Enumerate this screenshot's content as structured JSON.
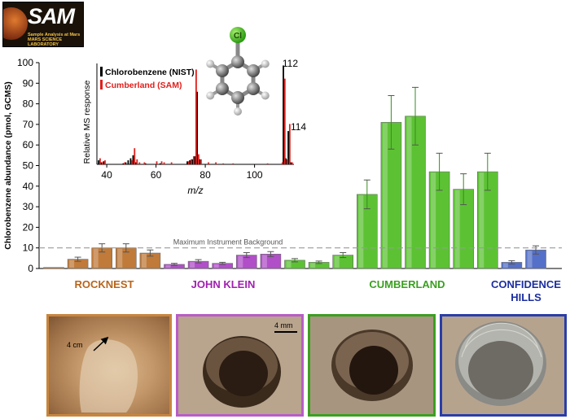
{
  "logo": {
    "title": "SAM",
    "subtitle_line1": "Sample Analysis at Mars",
    "subtitle_line2": "MARS SCIENCE LABORATORY"
  },
  "chart_data": [
    {
      "type": "bar",
      "ylabel": "Chlorobenzene abundance (pmol, GCMS)",
      "ylim": [
        0,
        100
      ],
      "yticks": [
        0,
        10,
        20,
        30,
        40,
        50,
        60,
        70,
        80,
        90,
        100
      ],
      "grid": false,
      "reference_line": {
        "value": 10,
        "label": "Maximum Instrument Background",
        "color": "#999999"
      },
      "groups": [
        {
          "name": "ROCKNEST",
          "color": "#c07a3a",
          "label_color": "#b8651c",
          "values": [
            0.5,
            4.5,
            10,
            10,
            7.5
          ],
          "errors": [
            0,
            1,
            2,
            2,
            1.5
          ]
        },
        {
          "name": "JOHN KLEIN",
          "color": "#b04fc8",
          "label_color": "#a020b0",
          "values": [
            2,
            3.5,
            2.5,
            6.5,
            7
          ],
          "errors": [
            0.5,
            0.8,
            0.5,
            1.2,
            1.2
          ]
        },
        {
          "name": "",
          "color": "#5cc234",
          "label_color": "",
          "values": [
            4,
            3,
            6.5
          ],
          "errors": [
            0.8,
            0.6,
            1.2
          ]
        },
        {
          "name": "CUMBERLAND",
          "color": "#5cc234",
          "label_color": "#3aa020",
          "values": [
            36,
            71,
            74,
            47,
            38.5,
            47
          ],
          "errors": [
            7,
            13,
            14,
            9,
            7.5,
            9
          ]
        },
        {
          "name": "CONFIDENCE HILLS",
          "color": "#5570c8",
          "label_color": "#1c2ea0",
          "values": [
            3,
            9
          ],
          "errors": [
            0.8,
            2
          ]
        }
      ]
    },
    {
      "type": "bar",
      "role": "inset mass spectrum",
      "xlabel": "m/z",
      "ylabel": "Relative MS response",
      "xlim": [
        36,
        116
      ],
      "xticks": [
        40,
        60,
        80,
        100
      ],
      "ylim": [
        0,
        100
      ],
      "legend": "top-left",
      "series": [
        {
          "name": "Chlorobenzene (NIST)",
          "color": "#000000",
          "x": [
            37,
            38,
            39,
            47,
            48,
            49,
            50,
            51,
            52,
            56,
            62,
            73,
            74,
            75,
            76,
            77,
            78,
            112,
            113,
            114,
            115
          ],
          "values": [
            4,
            2,
            3,
            1,
            2,
            4,
            6,
            9,
            2,
            1,
            1,
            3,
            4,
            5,
            8,
            72,
            5,
            98,
            6,
            33,
            2
          ]
        },
        {
          "name": "Cumberland (SAM)",
          "color": "#e0201c",
          "x": [
            37,
            38,
            39,
            47,
            50,
            51,
            52,
            53,
            55,
            60,
            62,
            63,
            66,
            73,
            74,
            75,
            76,
            77,
            78,
            81,
            84,
            87,
            91,
            105,
            111,
            112,
            113,
            114,
            115
          ],
          "values": [
            6,
            2,
            4,
            2,
            4,
            16,
            5,
            2,
            2,
            3,
            3,
            2,
            2,
            3,
            5,
            8,
            94,
            10,
            5,
            2,
            2,
            1,
            1,
            1,
            2,
            85,
            5,
            40,
            2
          ]
        }
      ],
      "peak_labels": [
        {
          "x": 112,
          "text": "112"
        },
        {
          "x": 114,
          "text": "114"
        }
      ]
    }
  ],
  "annotations": {
    "atom_label": "Cl",
    "photo_scale_1": "4 cm",
    "photo_scale_2": "4 mm"
  }
}
